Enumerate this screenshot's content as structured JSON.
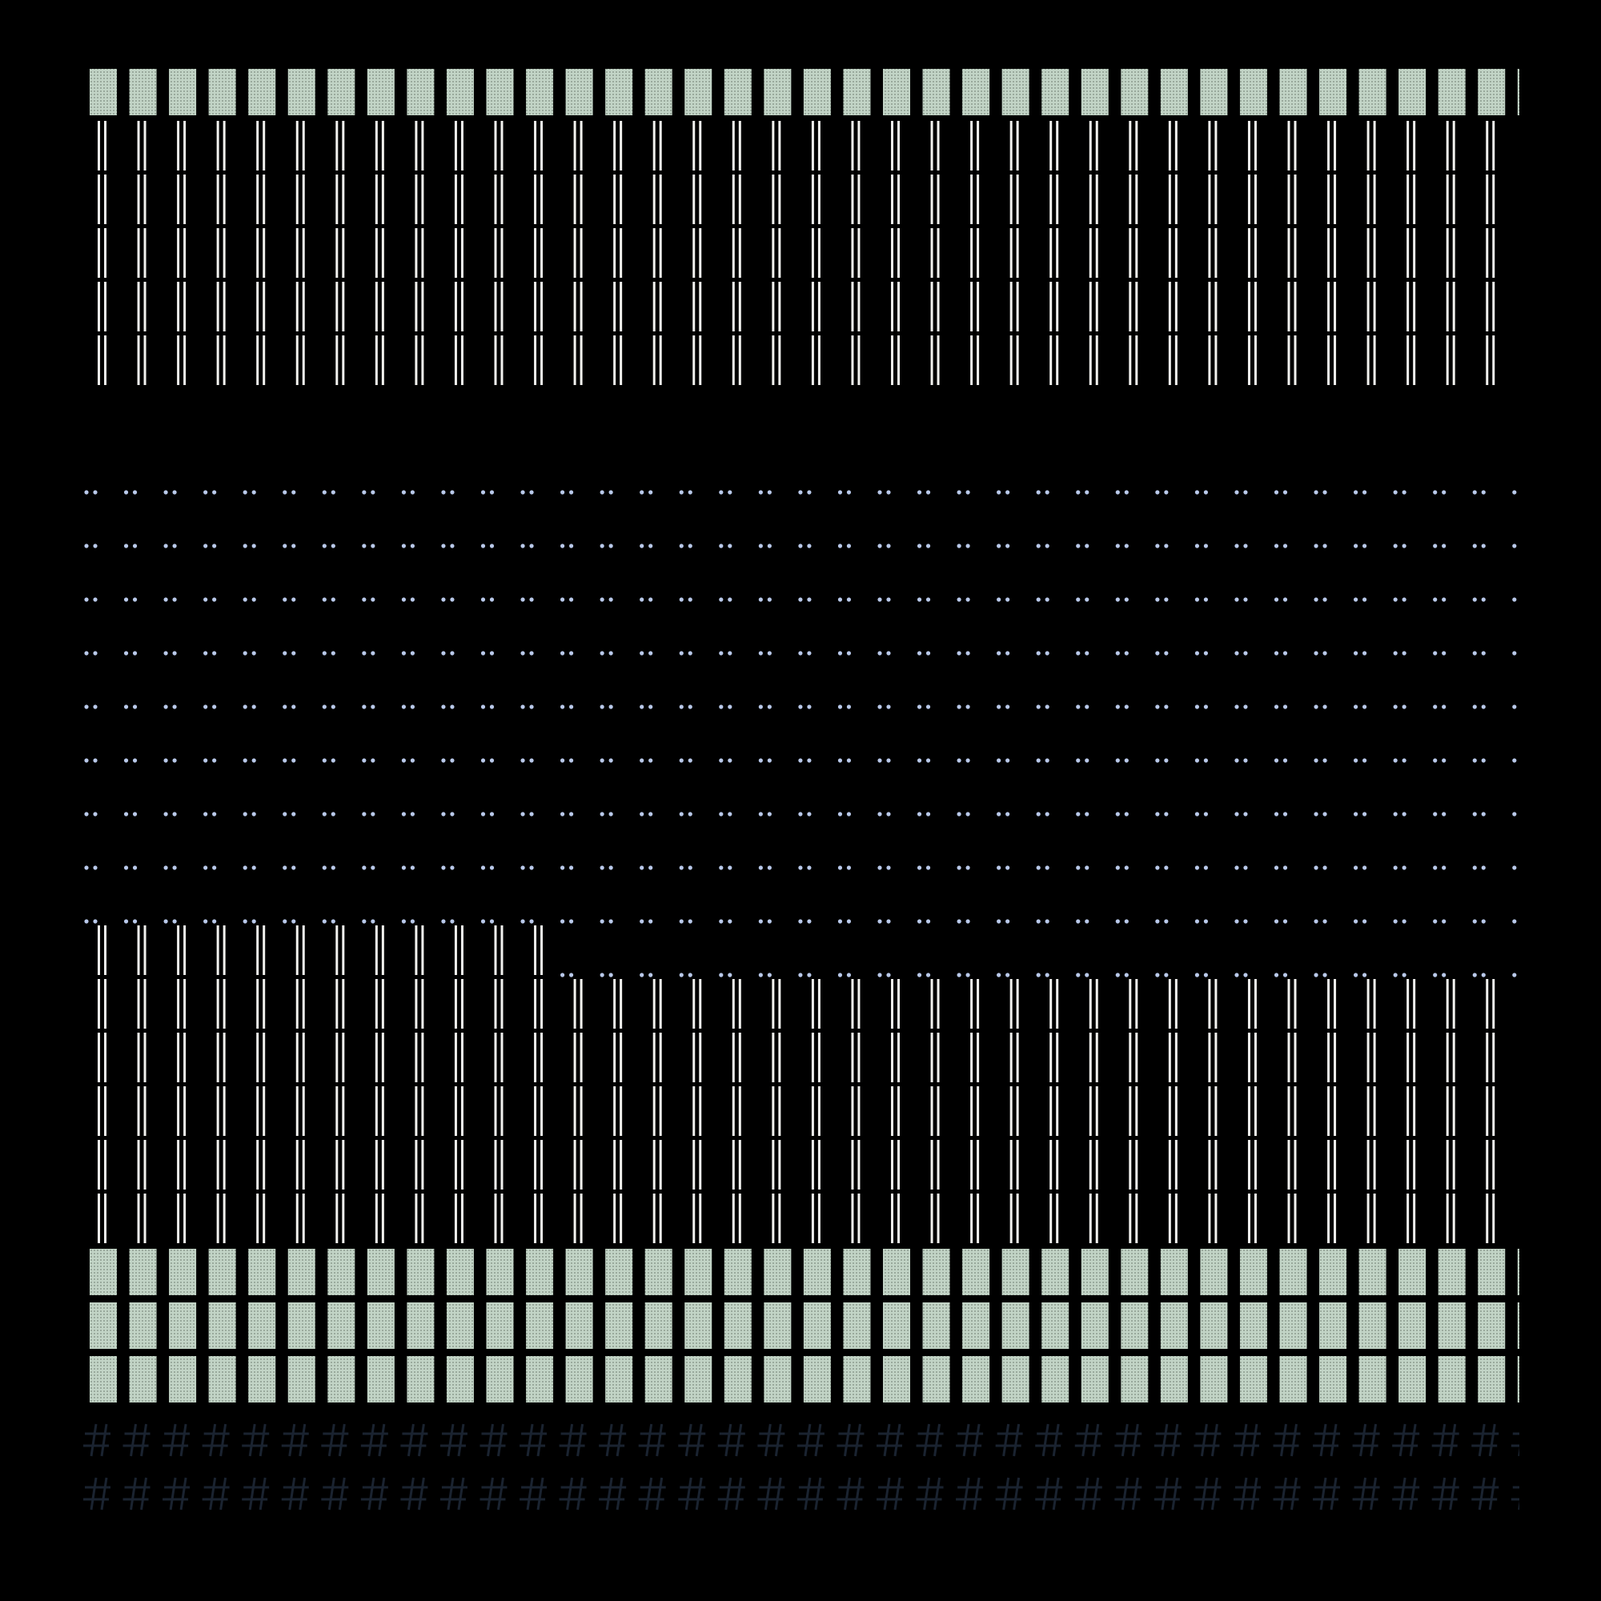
{
  "canvas": {
    "background": "#000000"
  },
  "palette": {
    "block_fill": "#c2d4c6",
    "block_dot": "#7d8c80",
    "bar_color": "#f2f2ef",
    "dot_color": "#b9c9ea",
    "hash_color": "#1a2330"
  },
  "grid": {
    "columns": 37,
    "trailing_partial_column": true
  },
  "rows": [
    {
      "glyph": "block",
      "icon": "dotted-block-icon"
    },
    {
      "glyph": "bar",
      "icon": "double-bar-icon"
    },
    {
      "glyph": "bar",
      "icon": "double-bar-icon"
    },
    {
      "glyph": "bar",
      "icon": "double-bar-icon"
    },
    {
      "glyph": "bar",
      "icon": "double-bar-icon"
    },
    {
      "glyph": "bar",
      "icon": "double-bar-icon"
    },
    {
      "glyph": "blank",
      "icon": ""
    },
    {
      "glyph": "dots",
      "icon": "dot-pair-icon"
    },
    {
      "glyph": "dots",
      "icon": "dot-pair-icon"
    },
    {
      "glyph": "dots",
      "icon": "dot-pair-icon"
    },
    {
      "glyph": "dots",
      "icon": "dot-pair-icon"
    },
    {
      "glyph": "dots",
      "icon": "dot-pair-icon"
    },
    {
      "glyph": "dots",
      "icon": "dot-pair-icon"
    },
    {
      "glyph": "dots",
      "icon": "dot-pair-icon"
    },
    {
      "glyph": "dots",
      "icon": "dot-pair-icon"
    },
    {
      "glyph": "dots",
      "icon": "dot-pair-icon"
    },
    {
      "glyph": "split",
      "icon": "double-bar-icon",
      "left_count": 12,
      "right_glyph": "dots"
    },
    {
      "glyph": "bar",
      "icon": "double-bar-icon"
    },
    {
      "glyph": "bar",
      "icon": "double-bar-icon"
    },
    {
      "glyph": "bar",
      "icon": "double-bar-icon"
    },
    {
      "glyph": "bar",
      "icon": "double-bar-icon"
    },
    {
      "glyph": "bar",
      "icon": "double-bar-icon"
    },
    {
      "glyph": "block",
      "icon": "dotted-block-icon"
    },
    {
      "glyph": "block",
      "icon": "dotted-block-icon"
    },
    {
      "glyph": "block",
      "icon": "dotted-block-icon"
    },
    {
      "glyph": "hash",
      "icon": "hash-icon"
    },
    {
      "glyph": "hash",
      "icon": "hash-icon"
    },
    {
      "glyph": "hash",
      "icon": "hash-icon",
      "clipped": true
    }
  ]
}
